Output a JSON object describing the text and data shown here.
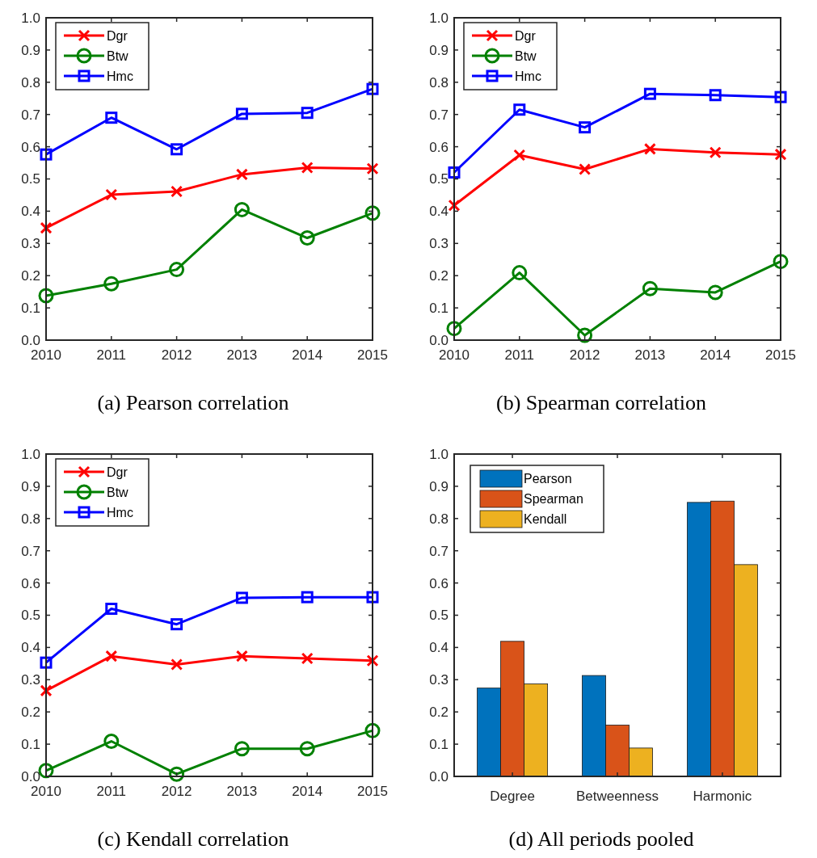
{
  "chart_data": [
    {
      "type": "line",
      "title": "(a) Pearson correlation",
      "x": [
        2010,
        2011,
        2012,
        2013,
        2014,
        2015
      ],
      "xlim": [
        2010,
        2015
      ],
      "xticks": [
        2010,
        2011,
        2012,
        2013,
        2014,
        2015
      ],
      "ylim": [
        0,
        1
      ],
      "yticks": [
        {
          "value": 0,
          "label": "0.0"
        },
        {
          "value": 0.1,
          "label": "0.1"
        },
        {
          "value": 0.2,
          "label": "0.2"
        },
        {
          "value": 0.3,
          "label": "0.3"
        },
        {
          "value": 0.4,
          "label": "0.4"
        },
        {
          "value": 0.5,
          "label": "0.5"
        },
        {
          "value": 0.6,
          "label": "0.6"
        },
        {
          "value": 0.7,
          "label": "0.7"
        },
        {
          "value": 0.8,
          "label": "0.8"
        },
        {
          "value": 0.9,
          "label": "0.9"
        },
        {
          "value": 1,
          "label": "1.0"
        }
      ],
      "legend": "top left",
      "grid": false,
      "line_style": "solid",
      "series": [
        {
          "name": "Dgr",
          "color": "#ff0000",
          "marker": "cross",
          "values": [
            0.348,
            0.451,
            0.461,
            0.514,
            0.535,
            0.532
          ]
        },
        {
          "name": "Btw",
          "color": "#008000",
          "marker": "circle",
          "values": [
            0.138,
            0.175,
            0.219,
            0.405,
            0.317,
            0.394
          ]
        },
        {
          "name": "Hmc",
          "color": "#0000ff",
          "marker": "square",
          "values": [
            0.576,
            0.69,
            0.592,
            0.702,
            0.705,
            0.779
          ]
        }
      ]
    },
    {
      "type": "line",
      "title": "(b) Spearman correlation",
      "x": [
        2010,
        2011,
        2012,
        2013,
        2014,
        2015
      ],
      "xlim": [
        2010,
        2015
      ],
      "xticks": [
        2010,
        2011,
        2012,
        2013,
        2014,
        2015
      ],
      "ylim": [
        0,
        1
      ],
      "yticks": [
        {
          "value": 0,
          "label": "0.0"
        },
        {
          "value": 0.1,
          "label": "0.1"
        },
        {
          "value": 0.2,
          "label": "0.2"
        },
        {
          "value": 0.3,
          "label": "0.3"
        },
        {
          "value": 0.4,
          "label": "0.4"
        },
        {
          "value": 0.5,
          "label": "0.5"
        },
        {
          "value": 0.6,
          "label": "0.6"
        },
        {
          "value": 0.7,
          "label": "0.7"
        },
        {
          "value": 0.8,
          "label": "0.8"
        },
        {
          "value": 0.9,
          "label": "0.9"
        },
        {
          "value": 1,
          "label": "1.0"
        }
      ],
      "legend": "top left",
      "grid": false,
      "line_style": "solid",
      "series": [
        {
          "name": "Dgr",
          "color": "#ff0000",
          "marker": "cross",
          "values": [
            0.418,
            0.574,
            0.53,
            0.593,
            0.582,
            0.576
          ]
        },
        {
          "name": "Btw",
          "color": "#008000",
          "marker": "circle",
          "values": [
            0.036,
            0.209,
            0.015,
            0.16,
            0.148,
            0.244
          ]
        },
        {
          "name": "Hmc",
          "color": "#0000ff",
          "marker": "square",
          "values": [
            0.52,
            0.715,
            0.66,
            0.764,
            0.76,
            0.754
          ]
        }
      ]
    },
    {
      "type": "line",
      "title": "(c) Kendall correlation",
      "x": [
        2010,
        2011,
        2012,
        2013,
        2014,
        2015
      ],
      "xlim": [
        2010,
        2015
      ],
      "xticks": [
        2010,
        2011,
        2012,
        2013,
        2014,
        2015
      ],
      "ylim": [
        0,
        1
      ],
      "yticks": [
        {
          "value": 0,
          "label": "0.0"
        },
        {
          "value": 0.1,
          "label": "0.1"
        },
        {
          "value": 0.2,
          "label": "0.2"
        },
        {
          "value": 0.3,
          "label": "0.3"
        },
        {
          "value": 0.4,
          "label": "0.4"
        },
        {
          "value": 0.5,
          "label": "0.5"
        },
        {
          "value": 0.6,
          "label": "0.6"
        },
        {
          "value": 0.7,
          "label": "0.7"
        },
        {
          "value": 0.8,
          "label": "0.8"
        },
        {
          "value": 0.9,
          "label": "0.9"
        },
        {
          "value": 1,
          "label": "1.0"
        }
      ],
      "legend": "top left",
      "grid": false,
      "line_style": "solid",
      "series": [
        {
          "name": "Dgr",
          "color": "#ff0000",
          "marker": "cross",
          "values": [
            0.266,
            0.373,
            0.347,
            0.373,
            0.366,
            0.359
          ]
        },
        {
          "name": "Btw",
          "color": "#008000",
          "marker": "circle",
          "values": [
            0.018,
            0.109,
            0.007,
            0.086,
            0.086,
            0.142
          ]
        },
        {
          "name": "Hmc",
          "color": "#0000ff",
          "marker": "square",
          "values": [
            0.353,
            0.52,
            0.472,
            0.554,
            0.556,
            0.556
          ]
        }
      ]
    },
    {
      "type": "bar",
      "title": "(d) All periods pooled",
      "categories": [
        "Degree",
        "Betweenness",
        "Harmonic"
      ],
      "ylim": [
        0,
        1
      ],
      "yticks": [
        {
          "value": 0,
          "label": "0.0"
        },
        {
          "value": 0.1,
          "label": "0.1"
        },
        {
          "value": 0.2,
          "label": "0.2"
        },
        {
          "value": 0.3,
          "label": "0.3"
        },
        {
          "value": 0.4,
          "label": "0.4"
        },
        {
          "value": 0.5,
          "label": "0.5"
        },
        {
          "value": 0.6,
          "label": "0.6"
        },
        {
          "value": 0.7,
          "label": "0.7"
        },
        {
          "value": 0.8,
          "label": "0.8"
        },
        {
          "value": 0.9,
          "label": "0.9"
        },
        {
          "value": 1,
          "label": "1.0"
        }
      ],
      "legend": "top left",
      "grid": false,
      "series": [
        {
          "name": "Pearson",
          "color": "#0072bd",
          "values": [
            0.274,
            0.313,
            0.85
          ]
        },
        {
          "name": "Spearman",
          "color": "#d95319",
          "values": [
            0.419,
            0.159,
            0.854
          ]
        },
        {
          "name": "Kendall",
          "color": "#edb120",
          "values": [
            0.287,
            0.088,
            0.657
          ]
        }
      ]
    }
  ]
}
